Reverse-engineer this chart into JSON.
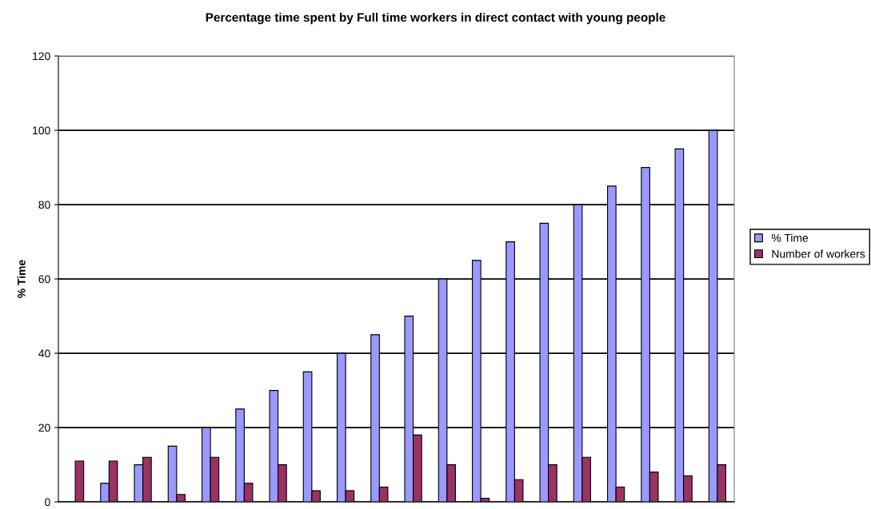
{
  "chart_data": {
    "type": "bar",
    "title": "Percentage time spent by Full time workers in direct contact with young people",
    "ylabel": "% Time",
    "categories": [
      null,
      null,
      null,
      null,
      null,
      null,
      null,
      null,
      null,
      null,
      null,
      null,
      null,
      null,
      null,
      null,
      null,
      null,
      null,
      null
    ],
    "series": [
      {
        "name": "% Time",
        "color": "#9999ff",
        "values": [
          0,
          5,
          10,
          15,
          20,
          25,
          30,
          35,
          40,
          45,
          50,
          60,
          65,
          70,
          75,
          80,
          85,
          90,
          95,
          100
        ]
      },
      {
        "name": "Number of workers",
        "color": "#993366",
        "values": [
          11,
          11,
          12,
          2,
          12,
          5,
          10,
          3,
          3,
          4,
          18,
          10,
          1,
          6,
          10,
          12,
          4,
          8,
          7,
          10
        ]
      }
    ],
    "ylim": [
      0,
      120
    ],
    "yticks": [
      0,
      20,
      40,
      60,
      80,
      100,
      120
    ],
    "grid": "y",
    "legend": "right",
    "tick_labels": "y"
  }
}
